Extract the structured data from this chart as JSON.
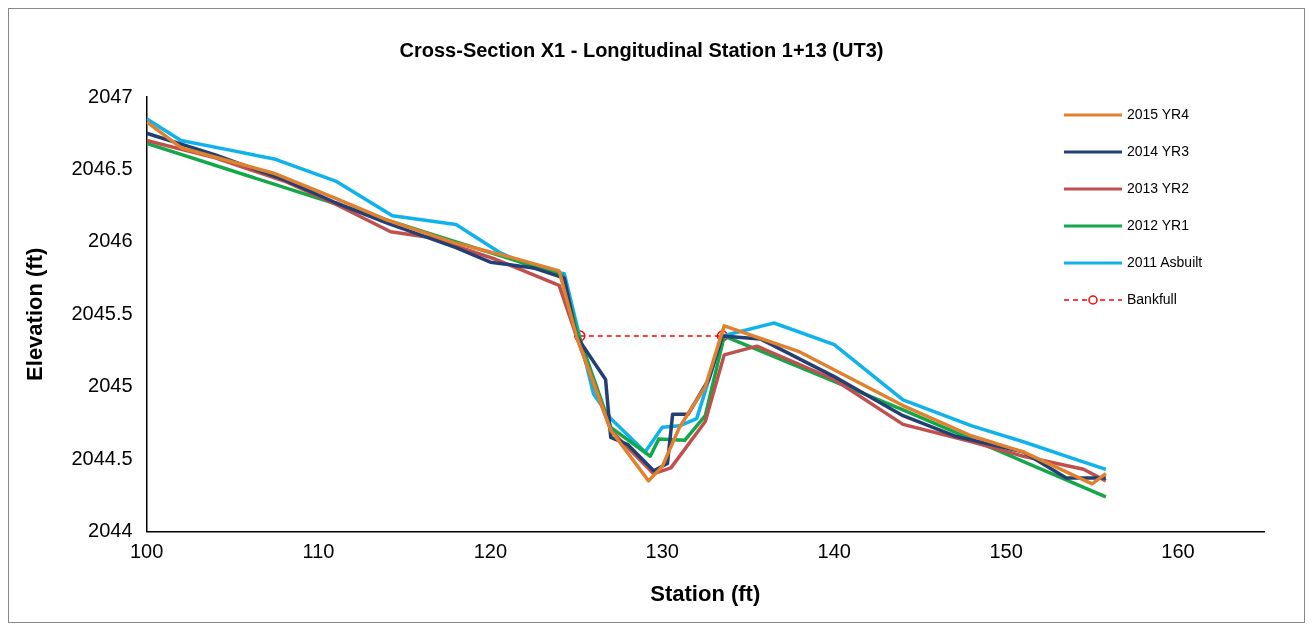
{
  "chart_data": {
    "type": "line",
    "title": "Cross-Section X1 - Longitudinal Station 1+13 (UT3)",
    "xlabel": "Station (ft)",
    "ylabel": "Elevation (ft)",
    "xlim": [
      100,
      165
    ],
    "xticks": [
      100,
      110,
      120,
      130,
      140,
      150,
      160
    ],
    "ylim": [
      2044,
      2047
    ],
    "yticks": [
      2044,
      2044.5,
      2045,
      2045.5,
      2046,
      2046.5,
      2047
    ],
    "grid": false,
    "legend": "top right",
    "line_style": "solid",
    "series": [
      {
        "name": "2015 YR4",
        "color": "#e0812f",
        "x": [
          100,
          102,
          107.5,
          111,
          114,
          118,
          121,
          124,
          125,
          127,
          129.2,
          130,
          131,
          132.5,
          133.6,
          138,
          144,
          148,
          151,
          155,
          155.8
        ],
        "values": [
          2046.83,
          2046.65,
          2046.47,
          2046.3,
          2046.15,
          2045.99,
          2045.9,
          2045.8,
          2045.35,
          2044.7,
          2044.35,
          2044.45,
          2044.72,
          2045.0,
          2045.42,
          2045.24,
          2044.87,
          2044.66,
          2044.55,
          2044.33,
          2044.4
        ]
      },
      {
        "name": "2014 YR3",
        "color": "#243f73",
        "x": [
          100,
          104,
          108,
          111,
          114,
          118,
          120,
          122.5,
          124.3,
          125,
          126.7,
          127,
          128,
          129.5,
          130.3,
          130.6,
          131.5,
          132.7,
          133.5,
          135.7,
          140,
          144,
          147,
          151,
          153.5,
          155.8
        ],
        "values": [
          2046.75,
          2046.6,
          2046.43,
          2046.27,
          2046.13,
          2045.96,
          2045.86,
          2045.82,
          2045.75,
          2045.35,
          2045.05,
          2044.65,
          2044.6,
          2044.42,
          2044.47,
          2044.81,
          2044.81,
          2045.05,
          2045.35,
          2045.33,
          2045.07,
          2044.8,
          2044.66,
          2044.55,
          2044.37,
          2044.37
        ]
      },
      {
        "name": "2013 YR2",
        "color": "#c0504d",
        "x": [
          100,
          104,
          108,
          111,
          114.2,
          116.5,
          120.3,
          124,
          125,
          127,
          129.5,
          130.5,
          131.5,
          132.5,
          133.6,
          135.5,
          140,
          144,
          148,
          151,
          154.5,
          155.8
        ],
        "values": [
          2046.7,
          2046.58,
          2046.42,
          2046.26,
          2046.07,
          2046.03,
          2045.88,
          2045.7,
          2045.35,
          2044.7,
          2044.4,
          2044.44,
          2044.6,
          2044.76,
          2045.22,
          2045.28,
          2045.05,
          2044.74,
          2044.62,
          2044.52,
          2044.43,
          2044.35
        ]
      },
      {
        "name": "2012 YR1",
        "color": "#13a74a",
        "x": [
          100,
          110,
          118,
          124.2,
          125,
          127,
          129.3,
          129.8,
          131.3,
          132.5,
          133.6,
          144,
          155.8
        ],
        "values": [
          2046.68,
          2046.3,
          2046.0,
          2045.77,
          2045.4,
          2044.72,
          2044.52,
          2044.64,
          2044.63,
          2044.8,
          2045.35,
          2044.84,
          2044.24
        ]
      },
      {
        "name": "2011 Asbuilt",
        "color": "#0fb2ea",
        "x": [
          100,
          102,
          105,
          107.5,
          111,
          114.3,
          118,
          120.5,
          122.5,
          124.3,
          126,
          127,
          129,
          130,
          131,
          132,
          133.5,
          136.5,
          140,
          144,
          148,
          151,
          154,
          155.8
        ],
        "values": [
          2046.85,
          2046.7,
          2046.63,
          2046.57,
          2046.42,
          2046.18,
          2046.12,
          2045.93,
          2045.82,
          2045.78,
          2044.95,
          2044.78,
          2044.55,
          2044.72,
          2044.73,
          2044.78,
          2045.35,
          2045.44,
          2045.29,
          2044.91,
          2044.73,
          2044.62,
          2044.5,
          2044.43
        ]
      },
      {
        "name": "Bankfull",
        "color": "#ff0000",
        "x": [
          125.2,
          133.5
        ],
        "values": [
          2045.35,
          2045.35
        ],
        "marker": "circle",
        "line_style": "dashed"
      }
    ]
  }
}
